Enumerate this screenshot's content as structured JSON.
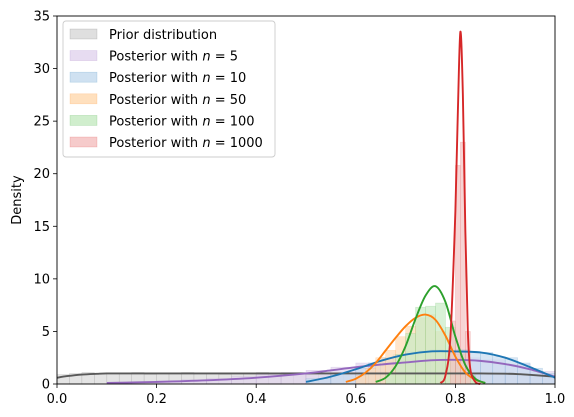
{
  "chart_data": {
    "type": "area",
    "title": "",
    "xlabel": "",
    "ylabel": "Density",
    "xlim": [
      0,
      1
    ],
    "ylim": [
      0,
      35
    ],
    "x_ticks": [
      "0.0",
      "0.2",
      "0.4",
      "0.6",
      "0.8",
      "1.0"
    ],
    "y_ticks": [
      "0",
      "5",
      "10",
      "15",
      "20",
      "25",
      "30",
      "35"
    ],
    "grid": false,
    "legend_position": "top-left",
    "series": [
      {
        "name": "Prior distribution",
        "color": "#595959",
        "fill": "#d9d9d9",
        "hist_edges": [
          0.0,
          0.025,
          0.05,
          0.075,
          0.1,
          0.125,
          0.15,
          0.175,
          0.2,
          0.225,
          0.25,
          0.275,
          0.3,
          0.325,
          0.35,
          0.375,
          0.4,
          0.425,
          0.45,
          0.475,
          0.5,
          0.525,
          0.55,
          0.575,
          0.6,
          0.625,
          0.65,
          0.675,
          0.7,
          0.725,
          0.75,
          0.775,
          0.8,
          0.825,
          0.85,
          0.875,
          0.9,
          0.925,
          0.95,
          0.975,
          1.0
        ],
        "hist_heights": [
          0.9,
          1.0,
          1.1,
          1.0,
          1.0,
          1.0,
          1.1,
          0.9,
          1.0,
          1.0,
          1.1,
          1.0,
          1.0,
          0.9,
          1.0,
          1.0,
          1.1,
          1.0,
          1.0,
          1.0,
          1.0,
          0.9,
          1.0,
          1.1,
          1.0,
          1.0,
          1.0,
          1.0,
          1.1,
          1.0,
          0.9,
          1.0,
          1.0,
          1.0,
          1.1,
          1.0,
          1.0,
          1.0,
          0.9,
          0.9
        ],
        "kde_x": [
          0.0,
          0.02,
          0.05,
          0.08,
          0.1,
          0.15,
          0.2,
          0.3,
          0.4,
          0.5,
          0.6,
          0.7,
          0.8,
          0.85,
          0.9,
          0.93,
          0.95,
          0.97,
          1.0
        ],
        "kde_y": [
          0.6,
          0.75,
          0.9,
          0.97,
          1.0,
          1.0,
          1.0,
          1.0,
          1.0,
          1.0,
          1.0,
          1.0,
          1.0,
          1.0,
          0.98,
          0.93,
          0.87,
          0.8,
          0.7
        ]
      },
      {
        "name": "Posterior with n = 5",
        "color": "#9467bd",
        "fill": "#e3d6ee",
        "hist_edges": [
          0.1,
          0.15,
          0.2,
          0.25,
          0.3,
          0.35,
          0.4,
          0.45,
          0.5,
          0.55,
          0.6,
          0.65,
          0.7,
          0.75,
          0.8,
          0.85,
          0.9,
          0.95,
          1.0
        ],
        "hist_heights": [
          0.1,
          0.2,
          0.3,
          0.4,
          0.5,
          0.7,
          0.9,
          1.1,
          1.3,
          1.6,
          2.0,
          2.1,
          2.3,
          2.4,
          2.5,
          2.3,
          1.9,
          1.2
        ],
        "kde_x": [
          0.1,
          0.2,
          0.3,
          0.4,
          0.5,
          0.55,
          0.6,
          0.65,
          0.7,
          0.75,
          0.8,
          0.85,
          0.9,
          0.95,
          1.0
        ],
        "kde_y": [
          0.1,
          0.2,
          0.35,
          0.6,
          1.0,
          1.3,
          1.6,
          1.85,
          2.05,
          2.25,
          2.3,
          2.2,
          1.9,
          1.4,
          0.7
        ]
      },
      {
        "name": "Posterior with n = 10",
        "color": "#1f77b4",
        "fill": "#c7dcef",
        "hist_edges": [
          0.5,
          0.55,
          0.6,
          0.625,
          0.65,
          0.675,
          0.7,
          0.725,
          0.75,
          0.775,
          0.8,
          0.825,
          0.85,
          0.875,
          0.9,
          0.925,
          0.95,
          0.975,
          1.0
        ],
        "hist_heights": [
          0.5,
          1.0,
          1.5,
          2.0,
          2.5,
          2.8,
          3.1,
          3.2,
          3.3,
          3.2,
          3.3,
          3.1,
          3.0,
          2.6,
          2.5,
          2.0,
          1.5,
          1.0
        ],
        "kde_x": [
          0.5,
          0.55,
          0.6,
          0.65,
          0.7,
          0.75,
          0.8,
          0.85,
          0.9,
          0.95,
          1.0
        ],
        "kde_y": [
          0.2,
          0.7,
          1.4,
          2.2,
          2.8,
          3.1,
          3.1,
          3.0,
          2.5,
          1.6,
          0.6
        ]
      },
      {
        "name": "Posterior with n = 50",
        "color": "#ff7f0e",
        "fill": "#ffdab3",
        "hist_edges": [
          0.6,
          0.62,
          0.64,
          0.66,
          0.68,
          0.7,
          0.72,
          0.74,
          0.76,
          0.78,
          0.8,
          0.82,
          0.84
        ],
        "hist_heights": [
          0.8,
          1.5,
          2.5,
          3.2,
          4.5,
          5.5,
          6.3,
          6.6,
          5.0,
          3.2,
          1.5,
          0.6
        ],
        "kde_x": [
          0.58,
          0.6,
          0.62,
          0.64,
          0.66,
          0.68,
          0.7,
          0.72,
          0.74,
          0.76,
          0.78,
          0.8,
          0.82,
          0.84,
          0.86
        ],
        "kde_y": [
          0.2,
          0.5,
          1.1,
          2.0,
          3.2,
          4.4,
          5.5,
          6.3,
          6.6,
          6.1,
          4.6,
          2.6,
          1.1,
          0.4,
          0.1
        ]
      },
      {
        "name": "Posterior with n = 100",
        "color": "#2ca02c",
        "fill": "#c8ebc4",
        "hist_edges": [
          0.66,
          0.68,
          0.7,
          0.72,
          0.74,
          0.76,
          0.78,
          0.8,
          0.82,
          0.84
        ],
        "hist_heights": [
          1.0,
          2.8,
          4.8,
          7.3,
          7.4,
          7.7,
          5.4,
          2.8,
          0.8
        ],
        "kde_x": [
          0.64,
          0.66,
          0.68,
          0.7,
          0.72,
          0.74,
          0.76,
          0.78,
          0.8,
          0.82,
          0.84,
          0.86
        ],
        "kde_y": [
          0.2,
          0.6,
          1.7,
          3.6,
          6.2,
          8.4,
          9.3,
          7.8,
          4.5,
          1.8,
          0.5,
          0.1
        ]
      },
      {
        "name": "Posterior with n = 1000",
        "color": "#d62728",
        "fill": "#f4c2c2",
        "hist_edges": [
          0.79,
          0.8,
          0.81,
          0.82,
          0.83
        ],
        "hist_heights": [
          6.0,
          20.8,
          23.0,
          5.0
        ],
        "kde_x": [
          0.77,
          0.78,
          0.79,
          0.8,
          0.805,
          0.81,
          0.815,
          0.82,
          0.825,
          0.83,
          0.84,
          0.85
        ],
        "kde_y": [
          0.1,
          0.8,
          4.5,
          16.5,
          26.0,
          33.5,
          27.5,
          14.5,
          5.0,
          1.4,
          0.2,
          0.0
        ]
      }
    ]
  },
  "legend": {
    "items": [
      {
        "prefix": "Prior distribution",
        "n": ""
      },
      {
        "prefix": "Posterior with ",
        "n": "5"
      },
      {
        "prefix": "Posterior with ",
        "n": "10"
      },
      {
        "prefix": "Posterior with ",
        "n": "50"
      },
      {
        "prefix": "Posterior with ",
        "n": "100"
      },
      {
        "prefix": "Posterior with ",
        "n": "1000"
      }
    ]
  }
}
